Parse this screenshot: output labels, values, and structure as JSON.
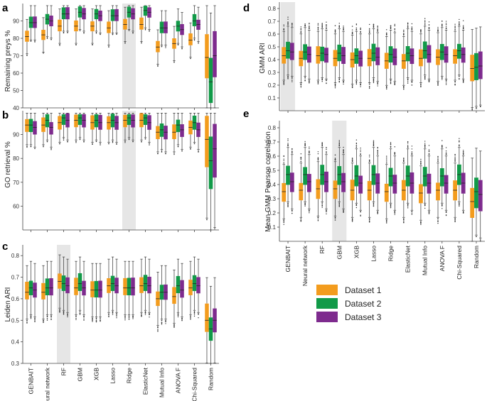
{
  "categories": [
    "GENBAIT",
    "Neural network",
    "RF",
    "GBM",
    "XGB",
    "Lasso",
    "Ridge",
    "ElasticNet",
    "Mutual Info",
    "ANOVA F",
    "Chi-Squared",
    "Random"
  ],
  "legend": {
    "entries": [
      {
        "name": "Dataset 1",
        "color": "#f39c1e"
      },
      {
        "name": "Dataset 2",
        "color": "#119a48"
      },
      {
        "name": "Dataset 3",
        "color": "#7e2b8e"
      }
    ]
  },
  "chart_data": [
    {
      "panel": "a",
      "type": "box",
      "ylabel": "Remaining preys %",
      "ylim": [
        40,
        100
      ],
      "yticks": [
        40,
        50,
        60,
        70,
        80,
        90
      ],
      "highlight": "Ridge",
      "series": [
        {
          "name": "Dataset 1",
          "median": [
            81,
            82,
            87,
            87,
            87,
            86,
            88,
            88,
            75,
            77,
            79,
            69
          ]
        },
        {
          "name": "Dataset 2",
          "median": [
            89,
            91,
            94,
            95,
            94,
            93,
            95,
            96,
            86,
            87,
            90,
            55
          ]
        },
        {
          "name": "Dataset 3",
          "median": [
            89,
            90,
            94,
            94,
            93,
            93,
            94,
            95,
            86,
            85,
            88,
            70
          ]
        }
      ]
    },
    {
      "panel": "b",
      "type": "box",
      "ylabel": "GO retrieval %",
      "ylim": [
        50,
        100
      ],
      "yticks": [
        60,
        70,
        80,
        90
      ],
      "highlight": "Ridge",
      "series": [
        {
          "name": "Dataset 1",
          "median": [
            94,
            94,
            95,
            96,
            95,
            95,
            96,
            96,
            91,
            91,
            93,
            88
          ]
        },
        {
          "name": "Dataset 2",
          "median": [
            94,
            96,
            97,
            97,
            96,
            96,
            97,
            97,
            92,
            94,
            95,
            79
          ]
        },
        {
          "name": "Dataset 3",
          "median": [
            93,
            93,
            96,
            96,
            95,
            95,
            96,
            95,
            91,
            92,
            92,
            84
          ]
        }
      ]
    },
    {
      "panel": "c",
      "type": "box",
      "ylabel": "Leiden ARI",
      "ylim": [
        0.3,
        0.85
      ],
      "yticks": [
        0.3,
        0.4,
        0.5,
        0.6,
        0.7,
        0.8
      ],
      "highlight": "RF",
      "series": [
        {
          "name": "Dataset 1",
          "median": [
            0.63,
            0.63,
            0.68,
            0.65,
            0.64,
            0.66,
            0.65,
            0.66,
            0.6,
            0.61,
            0.65,
            0.5
          ]
        },
        {
          "name": "Dataset 2",
          "median": [
            0.65,
            0.65,
            0.67,
            0.67,
            0.64,
            0.67,
            0.65,
            0.67,
            0.63,
            0.66,
            0.67,
            0.46
          ]
        },
        {
          "name": "Dataset 3",
          "median": [
            0.64,
            0.65,
            0.66,
            0.65,
            0.64,
            0.66,
            0.65,
            0.66,
            0.63,
            0.64,
            0.66,
            0.5
          ]
        }
      ]
    },
    {
      "panel": "d",
      "type": "box",
      "ylabel": "GMM ARI",
      "ylim": [
        0.0,
        0.85
      ],
      "yticks": [
        0.1,
        0.2,
        0.3,
        0.4,
        0.5,
        0.6,
        0.7,
        0.8
      ],
      "highlight": "GENBAIT",
      "series": [
        {
          "name": "Dataset 1",
          "median": [
            0.43,
            0.41,
            0.43,
            0.41,
            0.4,
            0.41,
            0.39,
            0.39,
            0.41,
            0.42,
            0.43,
            0.33
          ]
        },
        {
          "name": "Dataset 2",
          "median": [
            0.47,
            0.46,
            0.45,
            0.45,
            0.43,
            0.45,
            0.44,
            0.45,
            0.47,
            0.46,
            0.47,
            0.34
          ]
        },
        {
          "name": "Dataset 3",
          "median": [
            0.46,
            0.44,
            0.44,
            0.43,
            0.41,
            0.42,
            0.42,
            0.43,
            0.44,
            0.44,
            0.44,
            0.35
          ]
        }
      ]
    },
    {
      "panel": "e",
      "type": "box",
      "ylabel": "Mean GMM Pearson correlation",
      "ylim": [
        0.0,
        0.85
      ],
      "yticks": [
        0.1,
        0.2,
        0.3,
        0.4,
        0.5,
        0.6,
        0.7,
        0.8
      ],
      "highlight": "GBM",
      "series": [
        {
          "name": "Dataset 1",
          "median": [
            0.35,
            0.36,
            0.37,
            0.37,
            0.36,
            0.36,
            0.35,
            0.36,
            0.34,
            0.36,
            0.36,
            0.28
          ]
        },
        {
          "name": "Dataset 2",
          "median": [
            0.47,
            0.47,
            0.47,
            0.47,
            0.46,
            0.47,
            0.46,
            0.46,
            0.46,
            0.46,
            0.47,
            0.35
          ]
        },
        {
          "name": "Dataset 3",
          "median": [
            0.42,
            0.42,
            0.42,
            0.42,
            0.41,
            0.41,
            0.41,
            0.41,
            0.41,
            0.41,
            0.41,
            0.33
          ]
        }
      ]
    }
  ]
}
